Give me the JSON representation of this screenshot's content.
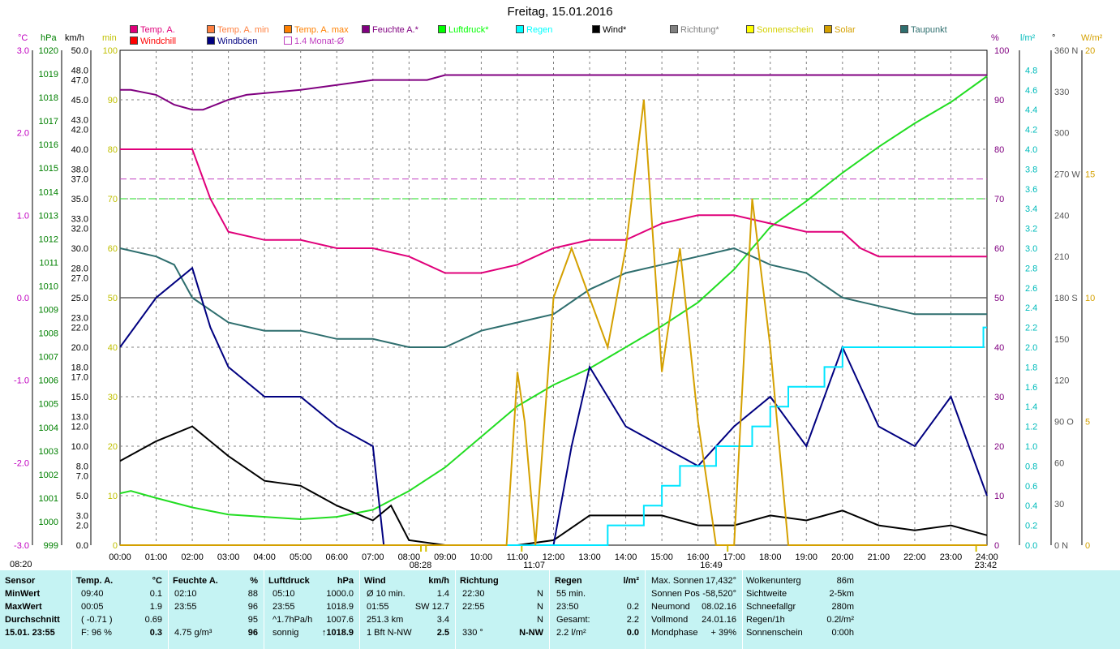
{
  "title": "Freitag, 15.01.2016",
  "legend_row1": [
    {
      "label": "Temp. A.",
      "color": "#e0007a"
    },
    {
      "label": "Temp. A. min",
      "color": "#ff8040"
    },
    {
      "label": "Temp. A. max",
      "color": "#ff8000"
    },
    {
      "label": "Feuchte A.*",
      "color": "#800080"
    },
    {
      "label": "Luftdruck*",
      "color": "#00ff00"
    },
    {
      "label": "Regen",
      "color": "#00ffff"
    },
    {
      "label": "Wind*",
      "color": "#000000"
    },
    {
      "label": "Richtung*",
      "color": "#808080"
    },
    {
      "label": "Sonnenschein",
      "color": "#ffff00"
    },
    {
      "label": "Solar",
      "color": "#d4a000"
    },
    {
      "label": "Taupunkt",
      "color": "#2e6e6e"
    }
  ],
  "legend_row2": [
    {
      "label": "Windchill",
      "color": "#ff0000"
    },
    {
      "label": "Windböen",
      "color": "#000080"
    },
    {
      "label": "1.4 Monat-Ø",
      "color": "#ffffff"
    }
  ],
  "axis_units_left": [
    "°C",
    "hPa",
    "km/h",
    "min"
  ],
  "axis_units_right": [
    "%",
    "l/m²",
    "°",
    "W/m²"
  ],
  "axes": {
    "temp": [
      "3.0",
      "2.0",
      "1.0",
      "0.0",
      "-1.0",
      "-2.0",
      "-3.0"
    ],
    "hpa": [
      "1020",
      "1019",
      "1018",
      "1017",
      "1016",
      "1015",
      "1014",
      "1013",
      "1012",
      "1011",
      "1010",
      "1009",
      "1008",
      "1007",
      "1006",
      "1005",
      "1004",
      "1003",
      "1002",
      "1001",
      "1000",
      "999"
    ],
    "kmh": [
      "50.0",
      "48.0",
      "47.0",
      "45.0",
      "43.0",
      "42.0",
      "40.0",
      "38.0",
      "37.0",
      "35.0",
      "33.0",
      "32.0",
      "30.0",
      "28.0",
      "27.0",
      "25.0",
      "23.0",
      "22.0",
      "20.0",
      "18.0",
      "17.0",
      "15.0",
      "13.0",
      "12.0",
      "10.0",
      "8.0",
      "7.0",
      "5.0",
      "3.0",
      "2.0",
      "0.0"
    ],
    "min": [
      "100",
      "90",
      "80",
      "70",
      "60",
      "50",
      "40",
      "30",
      "20",
      "10",
      "0"
    ],
    "pct": [
      "100",
      "90",
      "80",
      "70",
      "60",
      "50",
      "40",
      "30",
      "20",
      "10",
      "0"
    ],
    "rain": [
      "4.8",
      "4.6",
      "4.4",
      "4.2",
      "4.0",
      "3.8",
      "3.6",
      "3.4",
      "3.2",
      "3.0",
      "2.8",
      "2.6",
      "2.4",
      "2.2",
      "2.0",
      "1.8",
      "1.6",
      "1.4",
      "1.2",
      "1.0",
      "0.8",
      "0.6",
      "0.4",
      "0.2",
      "0.0"
    ],
    "deg": [
      "360 N",
      "330",
      "300",
      "270 W",
      "240",
      "210",
      "180 S",
      "150",
      "120",
      "90 O",
      "60",
      "30",
      "0 N"
    ],
    "wm2": [
      "20",
      "15",
      "10",
      "5",
      "0"
    ],
    "x_ticks": [
      "00:00",
      "01:00",
      "02:00",
      "03:00",
      "04:00",
      "05:00",
      "06:00",
      "07:00",
      "08:00",
      "09:00",
      "10:00",
      "11:00",
      "12:00",
      "13:00",
      "14:00",
      "15:00",
      "16:00",
      "17:00",
      "18:00",
      "19:00",
      "20:00",
      "21:00",
      "22:00",
      "23:00",
      "24:00"
    ],
    "sun_marks": [
      "08:20",
      "08:28",
      "11:07",
      "16:49",
      "23:42"
    ]
  },
  "chart_data": {
    "type": "line",
    "title": "Freitag, 15.01.2016",
    "x_unit": "hours",
    "series": [
      {
        "name": "Feuchte A.*",
        "unit": "%",
        "color": "#800080",
        "x": [
          0,
          0.3,
          1,
          1.5,
          2,
          2.3,
          3,
          3.5,
          5,
          6,
          7,
          8,
          8.5,
          9,
          24
        ],
        "values": [
          92,
          92,
          91,
          89,
          88,
          88,
          90,
          91,
          92,
          93,
          94,
          94,
          94,
          95,
          95
        ]
      },
      {
        "name": "Luftdruck*",
        "unit": "hPa",
        "color": "#22dd22",
        "x": [
          0,
          0.3,
          1,
          2,
          3,
          4,
          5,
          6,
          7,
          8,
          9,
          10,
          11,
          12,
          13,
          14,
          15,
          16,
          17,
          18,
          19,
          20,
          21,
          22,
          23,
          24
        ],
        "values": [
          1001.2,
          1001.3,
          1001.0,
          1000.6,
          1000.3,
          1000.2,
          1000.1,
          1000.2,
          1000.5,
          1001.3,
          1002.3,
          1003.6,
          1004.9,
          1005.8,
          1006.5,
          1007.4,
          1008.3,
          1009.3,
          1010.7,
          1012.5,
          1013.6,
          1014.8,
          1015.9,
          1016.9,
          1017.8,
          1018.9
        ]
      },
      {
        "name": "Temp. A.",
        "unit": "°C",
        "color": "#e0007a",
        "x": [
          0,
          1,
          2,
          2.5,
          3,
          4,
          5,
          6,
          7,
          8,
          9,
          10,
          11,
          12,
          13,
          14,
          15,
          16,
          17,
          18,
          19,
          20,
          20.5,
          21,
          22,
          23,
          24
        ],
        "values": [
          1.8,
          1.8,
          1.8,
          1.2,
          0.8,
          0.7,
          0.7,
          0.6,
          0.6,
          0.5,
          0.3,
          0.3,
          0.4,
          0.6,
          0.7,
          0.7,
          0.9,
          1.0,
          1.0,
          0.9,
          0.8,
          0.8,
          0.6,
          0.5,
          0.5,
          0.5,
          0.5
        ]
      },
      {
        "name": "Taupunkt",
        "unit": "°C",
        "color": "#2e6e6e",
        "x": [
          0,
          1,
          1.5,
          2,
          3,
          4,
          5,
          6,
          7,
          8,
          9,
          10,
          11,
          12,
          13,
          14,
          15,
          16,
          17,
          18,
          19,
          20,
          21,
          22,
          23,
          24
        ],
        "values": [
          0.6,
          0.5,
          0.4,
          0.0,
          -0.3,
          -0.4,
          -0.4,
          -0.5,
          -0.5,
          -0.6,
          -0.6,
          -0.4,
          -0.3,
          -0.2,
          0.1,
          0.3,
          0.4,
          0.5,
          0.6,
          0.4,
          0.3,
          0.0,
          -0.1,
          -0.2,
          -0.2,
          -0.2
        ]
      },
      {
        "name": "Wind*",
        "unit": "km/h",
        "color": "#000000",
        "x": [
          0,
          1,
          2,
          3,
          4,
          5,
          6,
          7,
          7.5,
          8,
          9,
          11,
          12,
          13,
          14,
          15,
          16,
          17,
          18,
          19,
          20,
          21,
          22,
          23,
          24
        ],
        "values": [
          8.5,
          10.5,
          12.0,
          9.0,
          6.5,
          6.0,
          4.0,
          2.5,
          4.0,
          0.5,
          0,
          0,
          0.5,
          3.0,
          3.0,
          3.0,
          2.0,
          2.0,
          3.0,
          2.5,
          3.5,
          2.0,
          1.5,
          2.0,
          1.0
        ]
      },
      {
        "name": "Windböen",
        "unit": "km/h",
        "color": "#000080",
        "x": [
          0,
          1,
          2,
          2.5,
          3,
          4,
          5,
          6,
          7,
          7.3,
          8,
          12,
          12.5,
          13,
          14,
          15,
          16,
          17,
          18,
          19,
          20,
          21,
          22,
          23,
          23.5,
          24
        ],
        "values": [
          20,
          25,
          28,
          22,
          18,
          15,
          15,
          12,
          10,
          0,
          0,
          0,
          10,
          18,
          12,
          10,
          8,
          12,
          15,
          10,
          20,
          12,
          10,
          15,
          10,
          5
        ]
      },
      {
        "name": "Regen",
        "unit": "l/m²",
        "color": "#00e5ff",
        "x": [
          0,
          13.5,
          14,
          14.5,
          15,
          15.5,
          16,
          16.5,
          17,
          17.5,
          18,
          18.5,
          19,
          19.5,
          20,
          21,
          22,
          23,
          23.9,
          24
        ],
        "values": [
          0,
          0.2,
          0.2,
          0.4,
          0.6,
          0.8,
          0.8,
          1.0,
          1.0,
          1.2,
          1.4,
          1.6,
          1.6,
          1.8,
          2.0,
          2.0,
          2.0,
          2.0,
          2.2,
          2.2
        ]
      },
      {
        "name": "Solar",
        "unit": "W/m²",
        "color": "#d4a000",
        "x": [
          0,
          10.7,
          11,
          11.2,
          11.5,
          12,
          12.5,
          13,
          13.5,
          14,
          14.5,
          15,
          15.5,
          16,
          16.5,
          17,
          17.5,
          18,
          18.5,
          24
        ],
        "values": [
          0,
          0,
          7,
          5,
          0,
          10,
          12,
          10,
          8,
          12,
          18,
          7,
          12,
          5,
          0,
          0,
          14,
          8,
          0,
          0
        ]
      }
    ],
    "reference_lines": [
      {
        "name": "1.4 Monat-Ø Feuchte",
        "unit": "%",
        "value": 74,
        "color": "#c040c0"
      },
      {
        "name": "1.4 Monat-Ø Luftdruck",
        "unit": "hPa",
        "value": 1013.7,
        "color": "#22dd22"
      }
    ]
  },
  "summary": {
    "headers": [
      "Sensor",
      "Temp. A.",
      "°C",
      "Feuchte A.",
      "%",
      "Luftdruck",
      "hPa",
      "Wind",
      "km/h",
      "Richtung",
      "Regen",
      "l/m²"
    ],
    "rows": [
      {
        "label": "MinWert",
        "temp_t": "09:40",
        "temp_v": "0.1",
        "hum_t": "02:10",
        "hum_v": "88",
        "press_t": "05:10",
        "press_v": "1000.0",
        "wind_t": "Ø 10 min.",
        "wind_v": "1.4",
        "dir_t": "22:30",
        "dir_v": "N",
        "rain_t": "55 min.",
        "rain_v": ""
      },
      {
        "label": "MaxWert",
        "temp_t": "00:05",
        "temp_v": "1.9",
        "hum_t": "23:55",
        "hum_v": "96",
        "press_t": "23:55",
        "press_v": "1018.9",
        "wind_t": "01:55",
        "wind_v": "SW 12.7",
        "dir_t": "22:55",
        "dir_v": "N",
        "rain_t": "23:50",
        "rain_v": "0.2"
      },
      {
        "label": "Durchschnitt",
        "temp_t": "( -0.71 )",
        "temp_v": "0.69",
        "hum_t": "",
        "hum_v": "95",
        "press_t": "^1.7hPa/h",
        "press_v": "1007.6",
        "wind_t": "251.3 km",
        "wind_v": "3.4",
        "dir_t": "",
        "dir_v": "N",
        "rain_t": "Gesamt:",
        "rain_v": "2.2"
      },
      {
        "label": "15.01. 23:55",
        "temp_t": "F: 96 %",
        "temp_v": "0.3",
        "hum_t": "4.75 g/m³",
        "hum_v": "96",
        "press_t": "sonnig",
        "press_v": "↑1018.9",
        "wind_t": "1 Bft N-NW",
        "wind_v": "2.5",
        "dir_t": "330 °",
        "dir_v": "N-NW",
        "rain_t": "2.2 l/m²",
        "rain_v": "0.0"
      }
    ],
    "astro": [
      {
        "label": "Max. Sonnen",
        "value": "17,432°"
      },
      {
        "label": "Sonnen Pos",
        "value": "-58,520°"
      },
      {
        "label": "Neumond",
        "value": "08.02.16"
      },
      {
        "label": "Vollmond",
        "value": "24.01.16"
      },
      {
        "label": "Mondphase",
        "value": "+ 39%"
      }
    ],
    "misc": [
      {
        "label": "Wolkenunterg",
        "value": "86m"
      },
      {
        "label": "Sichtweite",
        "value": "2-5km"
      },
      {
        "label": "Schneefallgr",
        "value": "280m"
      },
      {
        "label": "Regen/1h",
        "value": "0.2l/m²"
      },
      {
        "label": "Sonnenschein",
        "value": "0:00h"
      }
    ]
  }
}
